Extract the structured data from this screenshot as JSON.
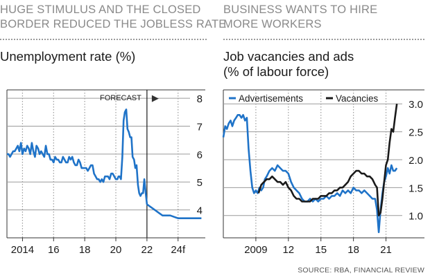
{
  "left": {
    "headline_1": "HUGE STIMULUS AND THE CLOSED",
    "headline_2": "BORDER REDUCED THE JOBLESS RATE",
    "subtitle": "Unemployment rate (%)"
  },
  "right": {
    "headline_1": "BUSINESS WANTS TO HIRE",
    "headline_2": "MORE WORKERS",
    "subtitle_1": "Job vacancies and ads",
    "subtitle_2": "(% of labour force)"
  },
  "source": "SOURCE: RBA, FINANCIAL REVIEW",
  "colors": {
    "blue": "#1f73c8",
    "black": "#1a1a1a",
    "grid": "#9a9a9a",
    "forecast_bg": "#ebebeb"
  },
  "chart_data": [
    {
      "type": "line",
      "title": "Unemployment rate (%)",
      "xlim": [
        2013.0,
        2025.75
      ],
      "ylim": [
        3.0,
        8.3
      ],
      "y_ticks": [
        4,
        5,
        6,
        7,
        8
      ],
      "y_tick_labels": [
        "4",
        "5",
        "6",
        "7",
        "8"
      ],
      "x_ticks": [
        2014,
        2016,
        2018,
        2020,
        2022,
        2024
      ],
      "x_tick_labels": [
        "2014",
        "16",
        "18",
        "20",
        "22",
        "24f"
      ],
      "forecast_start": 2022.0,
      "forecast_label": "FORECAST",
      "forecast_arrow": "▶",
      "series": [
        {
          "color": "#1f73c8",
          "x": [
            2013.0,
            2013.1,
            2013.2,
            2013.3,
            2013.4,
            2013.5,
            2013.6,
            2013.7,
            2013.8,
            2013.9,
            2014.0,
            2014.1,
            2014.2,
            2014.3,
            2014.4,
            2014.5,
            2014.6,
            2014.7,
            2014.8,
            2014.9,
            2015.0,
            2015.1,
            2015.2,
            2015.3,
            2015.4,
            2015.5,
            2015.6,
            2015.7,
            2015.8,
            2015.9,
            2016.0,
            2016.1,
            2016.2,
            2016.3,
            2016.4,
            2016.5,
            2016.6,
            2016.7,
            2016.8,
            2016.9,
            2017.0,
            2017.1,
            2017.2,
            2017.3,
            2017.4,
            2017.5,
            2017.6,
            2017.7,
            2017.8,
            2017.9,
            2018.0,
            2018.1,
            2018.2,
            2018.3,
            2018.4,
            2018.5,
            2018.6,
            2018.7,
            2018.8,
            2018.9,
            2019.0,
            2019.1,
            2019.2,
            2019.3,
            2019.4,
            2019.5,
            2019.6,
            2019.7,
            2019.8,
            2019.9,
            2020.0,
            2020.1,
            2020.17,
            2020.25,
            2020.33,
            2020.42,
            2020.5,
            2020.58,
            2020.67,
            2020.75,
            2020.83,
            2020.92,
            2021.0,
            2021.08,
            2021.17,
            2021.25,
            2021.33,
            2021.42,
            2021.5,
            2021.58,
            2021.67,
            2021.75,
            2021.83,
            2021.92,
            2022.0,
            2022.25,
            2022.5,
            2022.75,
            2023.0,
            2023.5,
            2024.0,
            2024.5,
            2025.0,
            2025.5
          ],
          "values": [
            6.0,
            6.0,
            5.9,
            6.0,
            6.1,
            6.1,
            6.2,
            6.3,
            6.1,
            6.4,
            6.0,
            6.2,
            6.1,
            6.3,
            6.2,
            6.0,
            6.4,
            6.1,
            5.9,
            6.3,
            6.2,
            6.0,
            6.1,
            6.0,
            5.9,
            6.3,
            6.0,
            6.0,
            5.8,
            5.8,
            5.7,
            5.9,
            5.8,
            5.8,
            5.7,
            5.7,
            5.9,
            5.8,
            5.7,
            5.7,
            5.9,
            5.8,
            5.9,
            5.7,
            5.6,
            5.6,
            5.8,
            5.7,
            5.5,
            5.5,
            5.5,
            5.5,
            5.4,
            5.5,
            5.6,
            5.6,
            5.3,
            5.2,
            5.1,
            5.1,
            5.0,
            5.1,
            5.0,
            5.2,
            5.2,
            5.2,
            5.1,
            5.3,
            5.3,
            5.2,
            5.1,
            5.1,
            5.2,
            5.2,
            5.1,
            5.9,
            7.2,
            7.5,
            7.6,
            6.9,
            6.8,
            6.6,
            6.6,
            5.9,
            5.8,
            5.5,
            5.6,
            4.9,
            4.6,
            4.5,
            4.6,
            4.6,
            5.1,
            4.6,
            4.2,
            4.1,
            4.0,
            3.9,
            3.8,
            3.8,
            3.7,
            3.7,
            3.7,
            3.7
          ]
        }
      ]
    },
    {
      "type": "line",
      "title": "Job vacancies and ads (% of labour force)",
      "xlim": [
        2006.0,
        2022.5
      ],
      "ylim": [
        0.6,
        3.25
      ],
      "y_ticks": [
        1.0,
        1.5,
        2.0,
        2.5,
        3.0
      ],
      "y_tick_labels": [
        "1.0",
        "1.5",
        "2.0",
        "2.5",
        "3.0"
      ],
      "x_ticks": [
        2009,
        2012,
        2015,
        2018,
        2021
      ],
      "x_tick_labels": [
        "2009",
        "12",
        "15",
        "18",
        "21"
      ],
      "series": [
        {
          "name": "Advertisements",
          "color": "#1f73c8",
          "x": [
            2006.0,
            2006.17,
            2006.33,
            2006.5,
            2006.67,
            2006.83,
            2007.0,
            2007.17,
            2007.33,
            2007.5,
            2007.67,
            2007.83,
            2008.0,
            2008.17,
            2008.33,
            2008.5,
            2008.67,
            2008.83,
            2009.0,
            2009.17,
            2009.33,
            2009.5,
            2009.67,
            2009.83,
            2010.0,
            2010.25,
            2010.5,
            2010.75,
            2011.0,
            2011.25,
            2011.5,
            2011.75,
            2012.0,
            2012.25,
            2012.5,
            2012.75,
            2013.0,
            2013.25,
            2013.5,
            2013.75,
            2014.0,
            2014.25,
            2014.5,
            2014.75,
            2015.0,
            2015.25,
            2015.5,
            2015.75,
            2016.0,
            2016.25,
            2016.5,
            2016.75,
            2017.0,
            2017.25,
            2017.5,
            2017.75,
            2018.0,
            2018.25,
            2018.5,
            2018.75,
            2019.0,
            2019.25,
            2019.5,
            2019.75,
            2020.0,
            2020.17,
            2020.33,
            2020.5,
            2020.67,
            2020.83,
            2021.0,
            2021.17,
            2021.33,
            2021.5,
            2021.67,
            2021.83,
            2022.0
          ],
          "values": [
            2.4,
            2.6,
            2.55,
            2.65,
            2.7,
            2.6,
            2.7,
            2.75,
            2.8,
            2.8,
            2.75,
            2.8,
            2.7,
            2.75,
            2.2,
            1.8,
            1.5,
            1.4,
            1.45,
            1.4,
            1.5,
            1.45,
            1.5,
            1.65,
            1.7,
            1.8,
            1.85,
            1.8,
            1.9,
            1.85,
            1.8,
            1.8,
            1.75,
            1.6,
            1.5,
            1.45,
            1.4,
            1.3,
            1.25,
            1.25,
            1.3,
            1.25,
            1.3,
            1.25,
            1.3,
            1.3,
            1.35,
            1.3,
            1.35,
            1.35,
            1.4,
            1.35,
            1.45,
            1.4,
            1.45,
            1.4,
            1.5,
            1.45,
            1.45,
            1.4,
            1.45,
            1.4,
            1.35,
            1.3,
            1.3,
            1.1,
            0.7,
            1.1,
            1.4,
            1.6,
            1.7,
            1.85,
            1.75,
            1.9,
            1.8,
            1.8,
            1.85
          ]
        },
        {
          "name": "Vacancies",
          "color": "#1a1a1a",
          "x": [
            2009.25,
            2009.5,
            2009.75,
            2010.0,
            2010.25,
            2010.5,
            2010.75,
            2011.0,
            2011.25,
            2011.5,
            2011.75,
            2012.0,
            2012.25,
            2012.5,
            2012.75,
            2013.0,
            2013.25,
            2013.5,
            2013.75,
            2014.0,
            2014.25,
            2014.5,
            2014.75,
            2015.0,
            2015.25,
            2015.5,
            2015.75,
            2016.0,
            2016.25,
            2016.5,
            2016.75,
            2017.0,
            2017.25,
            2017.5,
            2017.75,
            2018.0,
            2018.25,
            2018.5,
            2018.75,
            2019.0,
            2019.25,
            2019.5,
            2019.75,
            2020.0,
            2020.17,
            2020.33,
            2020.5,
            2020.67,
            2020.83,
            2021.0,
            2021.17,
            2021.33,
            2021.5,
            2021.67,
            2021.83,
            2022.0
          ],
          "values": [
            1.4,
            1.55,
            1.6,
            1.65,
            1.65,
            1.7,
            1.65,
            1.6,
            1.6,
            1.55,
            1.6,
            1.5,
            1.45,
            1.35,
            1.3,
            1.3,
            1.25,
            1.25,
            1.25,
            1.25,
            1.3,
            1.3,
            1.3,
            1.35,
            1.35,
            1.35,
            1.4,
            1.4,
            1.45,
            1.45,
            1.5,
            1.5,
            1.55,
            1.6,
            1.7,
            1.75,
            1.8,
            1.8,
            1.75,
            1.75,
            1.7,
            1.7,
            1.65,
            1.55,
            1.5,
            1.0,
            1.05,
            1.3,
            1.6,
            1.9,
            2.0,
            2.3,
            2.55,
            2.5,
            2.75,
            3.0
          ]
        }
      ]
    }
  ]
}
